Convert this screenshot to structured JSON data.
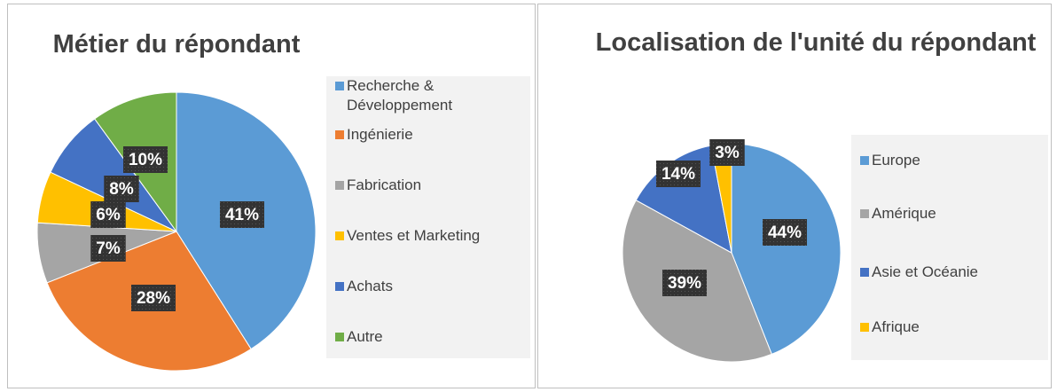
{
  "chart_data": [
    {
      "type": "pie",
      "title": "Métier du répondant",
      "categories": [
        "Recherche & Développement",
        "Ingénierie",
        "Fabrication",
        "Ventes et Marketing",
        "Achats",
        "Autre"
      ],
      "values": [
        41,
        28,
        7,
        6,
        8,
        10
      ],
      "value_labels": [
        "41%",
        "28%",
        "7%",
        "6%",
        "8%",
        "10%"
      ],
      "colors": [
        "#5b9bd5",
        "#ed7d31",
        "#a5a5a5",
        "#ffc000",
        "#4472c4",
        "#70ad47"
      ],
      "legend": "right"
    },
    {
      "type": "pie",
      "title": "Localisation de l'unité du répondant",
      "categories": [
        "Europe",
        "Amérique",
        "Asie et Océanie",
        "Afrique"
      ],
      "values": [
        44,
        39,
        14,
        3
      ],
      "value_labels": [
        "44%",
        "39%",
        "14%",
        "3%"
      ],
      "colors": [
        "#5b9bd5",
        "#a5a5a5",
        "#4472c4",
        "#ffc000"
      ],
      "legend": "right"
    }
  ]
}
